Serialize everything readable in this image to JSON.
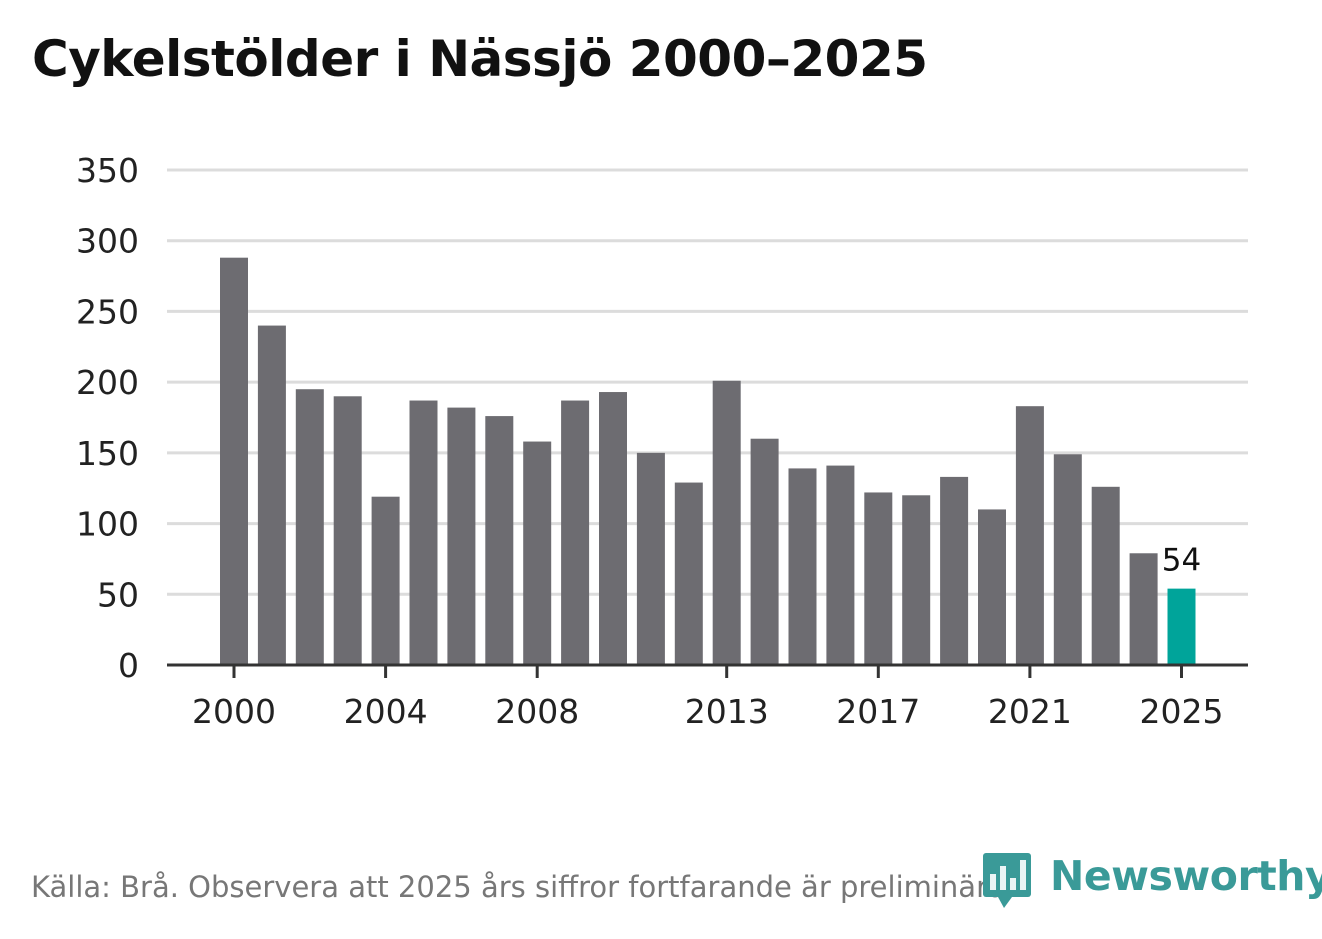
{
  "title": "Cykelstölder i Nässjö 2000–2025",
  "source": "Källa: Brå. Observera att 2025 års siffror fortfarande är preliminära.",
  "logo": {
    "text": "Newsworthy",
    "icon": "newsworthy-logo-icon"
  },
  "colors": {
    "bar": "#6d6c71",
    "highlight": "#00a49a",
    "grid": "#dcdcdc",
    "axis": "#333333"
  },
  "chart_data": {
    "type": "bar",
    "title": "Cykelstölder i Nässjö 2000–2025",
    "xlabel": "",
    "ylabel": "",
    "ylim": [
      0,
      350
    ],
    "yticks": [
      0,
      50,
      100,
      150,
      200,
      250,
      300,
      350
    ],
    "categories": [
      "2000",
      "2001",
      "2002",
      "2003",
      "2004",
      "2005",
      "2006",
      "2007",
      "2008",
      "2009",
      "2010",
      "2011",
      "2012",
      "2013",
      "2014",
      "2015",
      "2016",
      "2017",
      "2018",
      "2019",
      "2020",
      "2021",
      "2022",
      "2023",
      "2024",
      "2025"
    ],
    "values": [
      288,
      240,
      195,
      190,
      119,
      187,
      182,
      176,
      158,
      187,
      193,
      150,
      129,
      201,
      160,
      139,
      141,
      122,
      120,
      133,
      110,
      183,
      149,
      126,
      79,
      54
    ],
    "xtick_labels": [
      "2000",
      "2004",
      "2008",
      "2013",
      "2017",
      "2021",
      "2025"
    ],
    "highlight": "2025",
    "annotations": [
      {
        "category": "2025",
        "text": "54"
      }
    ],
    "grid": true
  }
}
